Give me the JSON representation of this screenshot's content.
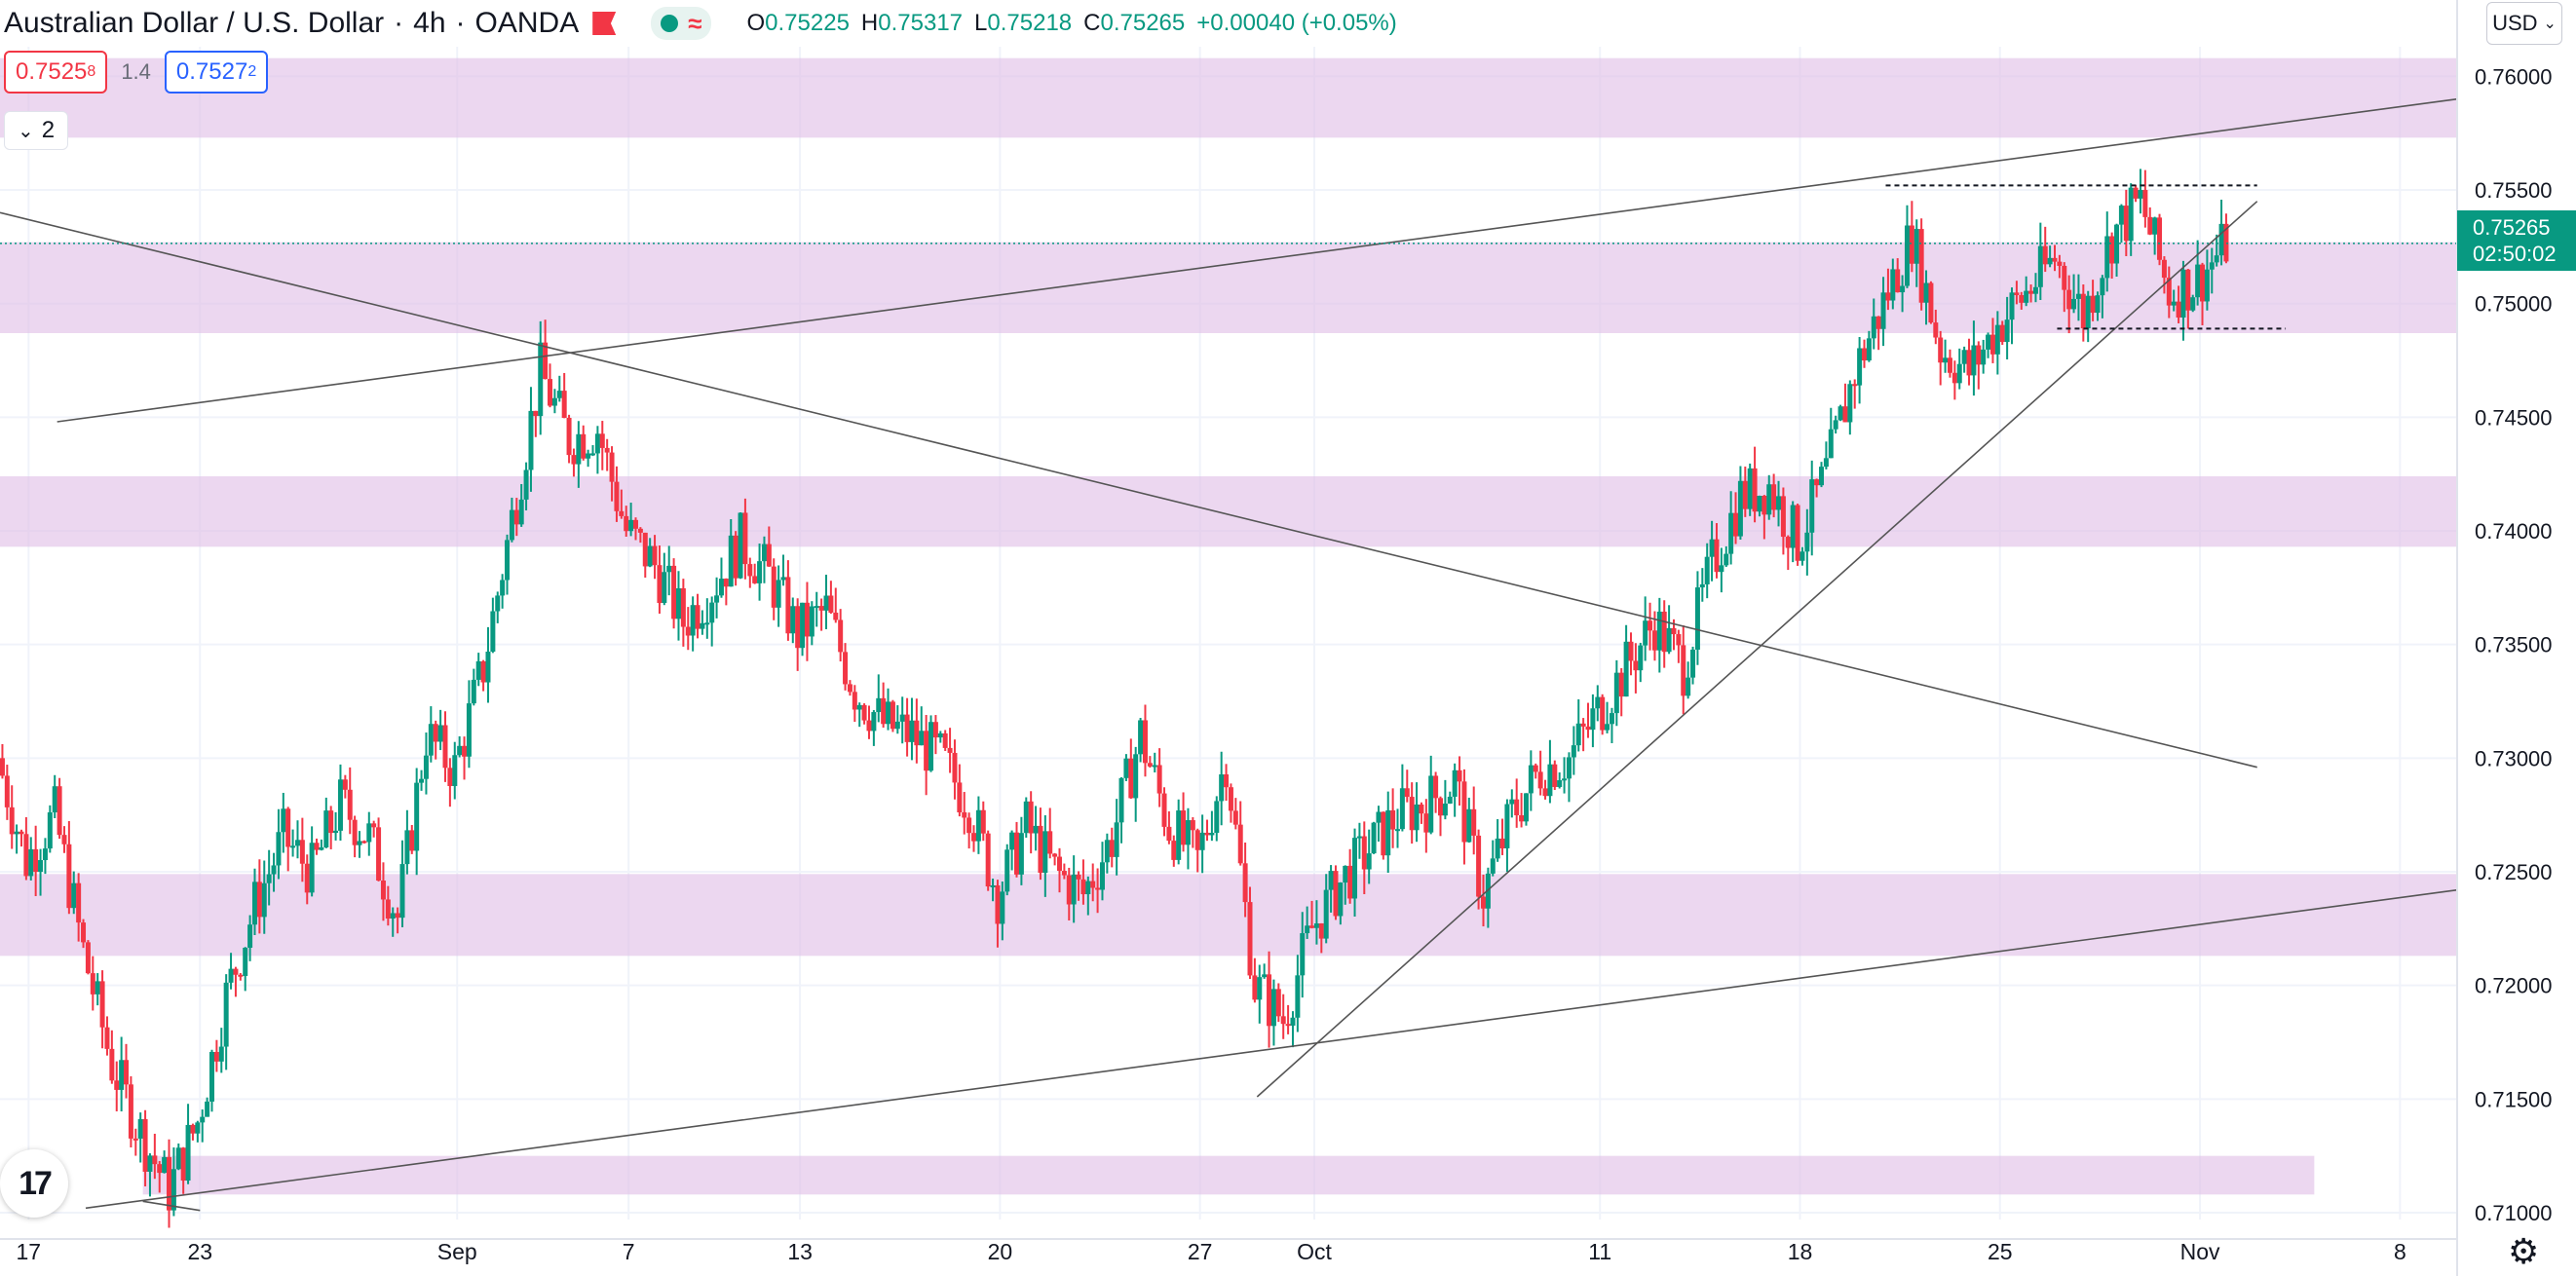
{
  "header": {
    "symbol": "Australian Dollar / U.S. Dollar",
    "timeframe": "4h",
    "broker": "OANDA",
    "sep": "·",
    "wave_glyph": "≈",
    "ohlc": {
      "o_label": "O",
      "o_value": "0.75225",
      "h_label": "H",
      "h_value": "0.75317",
      "l_label": "L",
      "l_value": "0.75218",
      "c_label": "C",
      "c_value": "0.75265",
      "change": "+0.00040 (+0.05%)"
    }
  },
  "trade": {
    "sell_main": "0.7525",
    "sell_sup": "8",
    "spread": "1.4",
    "buy_main": "0.7527",
    "buy_sup": "2"
  },
  "indicators_toggle": {
    "count": "2",
    "chevron": "⌄"
  },
  "currency_select": {
    "value": "USD",
    "chevron": "⌄"
  },
  "last_price": {
    "price": "0.75265",
    "countdown": "02:50:02"
  },
  "logo_text": "17",
  "colors": {
    "up": "#089981",
    "down": "#f23645",
    "zone": "#e1bee7",
    "line": "#555555",
    "grid": "#f0f3fa"
  },
  "chart_data": {
    "type": "candlestick",
    "title": "",
    "ylim": [
      0.7097,
      0.7613
    ],
    "y_ticks": [
      0.76,
      0.755,
      0.75,
      0.745,
      0.74,
      0.735,
      0.73,
      0.725,
      0.72,
      0.715,
      0.71
    ],
    "y_tick_labels": [
      "0.76000",
      "0.75500",
      "0.75000",
      "0.74500",
      "0.74000",
      "0.73500",
      "0.73000",
      "0.72500",
      "0.72000",
      "0.71500",
      "0.71000"
    ],
    "x_range": [
      "Aug 16",
      "Nov 10"
    ],
    "x_ticks": [
      {
        "date": "Aug 17",
        "label": "17"
      },
      {
        "date": "Aug 23",
        "label": "23"
      },
      {
        "date": "Sep 1",
        "label": "Sep"
      },
      {
        "date": "Sep 7",
        "label": "7"
      },
      {
        "date": "Sep 13",
        "label": "13"
      },
      {
        "date": "Sep 20",
        "label": "20"
      },
      {
        "date": "Sep 27",
        "label": "27"
      },
      {
        "date": "Oct 1",
        "label": "Oct"
      },
      {
        "date": "Oct 11",
        "label": "11"
      },
      {
        "date": "Oct 18",
        "label": "18"
      },
      {
        "date": "Oct 25",
        "label": "25"
      },
      {
        "date": "Nov 1",
        "label": "Nov"
      },
      {
        "date": "Nov 8",
        "label": "8"
      }
    ],
    "close_path": [
      [
        "Aug 16",
        0.73
      ],
      [
        "Aug 17",
        0.7255
      ],
      [
        "Aug 18",
        0.7275
      ],
      [
        "Aug 19",
        0.7215
      ],
      [
        "Aug 20",
        0.7165
      ],
      [
        "Aug 21",
        0.7135
      ],
      [
        "Aug 22",
        0.711
      ],
      [
        "Aug 23",
        0.714
      ],
      [
        "Aug 24",
        0.7195
      ],
      [
        "Aug 25",
        0.7235
      ],
      [
        "Aug 26",
        0.7265
      ],
      [
        "Aug 27",
        0.725
      ],
      [
        "Aug 28",
        0.728
      ],
      [
        "Aug 29",
        0.7265
      ],
      [
        "Aug 30",
        0.723
      ],
      [
        "Aug 31",
        0.731
      ],
      [
        "Sep 1",
        0.7295
      ],
      [
        "Sep 2",
        0.734
      ],
      [
        "Sep 3",
        0.7405
      ],
      [
        "Sep 4",
        0.747
      ],
      [
        "Sep 5",
        0.744
      ],
      [
        "Sep 6",
        0.7445
      ],
      [
        "Sep 7",
        0.74
      ],
      [
        "Sep 8",
        0.7385
      ],
      [
        "Sep 9",
        0.736
      ],
      [
        "Sep 10",
        0.7375
      ],
      [
        "Sep 11",
        0.7395
      ],
      [
        "Sep 12",
        0.738
      ],
      [
        "Sep 13",
        0.7355
      ],
      [
        "Sep 14",
        0.7365
      ],
      [
        "Sep 15",
        0.733
      ],
      [
        "Sep 16",
        0.7315
      ],
      [
        "Sep 17",
        0.731
      ],
      [
        "Sep 18",
        0.73
      ],
      [
        "Sep 19",
        0.728
      ],
      [
        "Sep 20",
        0.724
      ],
      [
        "Sep 21",
        0.727
      ],
      [
        "Sep 22",
        0.725
      ],
      [
        "Sep 23",
        0.724
      ],
      [
        "Sep 24",
        0.7265
      ],
      [
        "Sep 25",
        0.731
      ],
      [
        "Sep 26",
        0.727
      ],
      [
        "Sep 27",
        0.7255
      ],
      [
        "Sep 28",
        0.73
      ],
      [
        "Sep 29",
        0.72
      ],
      [
        "Sep 30",
        0.7185
      ],
      [
        "Oct 1",
        0.7225
      ],
      [
        "Oct 2",
        0.7245
      ],
      [
        "Oct 3",
        0.726
      ],
      [
        "Oct 4",
        0.7275
      ],
      [
        "Oct 5",
        0.728
      ],
      [
        "Oct 6",
        0.729
      ],
      [
        "Oct 7",
        0.724
      ],
      [
        "Oct 8",
        0.7275
      ],
      [
        "Oct 9",
        0.7295
      ],
      [
        "Oct 10",
        0.73
      ],
      [
        "Oct 11",
        0.732
      ],
      [
        "Oct 12",
        0.734
      ],
      [
        "Oct 13",
        0.736
      ],
      [
        "Oct 14",
        0.734
      ],
      [
        "Oct 15",
        0.7385
      ],
      [
        "Oct 16",
        0.7415
      ],
      [
        "Oct 17",
        0.742
      ],
      [
        "Oct 18",
        0.7395
      ],
      [
        "Oct 19",
        0.7425
      ],
      [
        "Oct 20",
        0.747
      ],
      [
        "Oct 21",
        0.75
      ],
      [
        "Oct 22",
        0.753
      ],
      [
        "Oct 23",
        0.748
      ],
      [
        "Oct 24",
        0.747
      ],
      [
        "Oct 25",
        0.749
      ],
      [
        "Oct 26",
        0.7505
      ],
      [
        "Oct 27",
        0.752
      ],
      [
        "Oct 28",
        0.7495
      ],
      [
        "Oct 29",
        0.753
      ],
      [
        "Oct 30",
        0.7545
      ],
      [
        "Oct 31",
        0.7505
      ],
      [
        "Nov 1",
        0.751
      ],
      [
        "Nov 2",
        0.75265
      ]
    ],
    "zones": [
      {
        "from": "Aug 16",
        "to": "Nov 10",
        "y1": 0.7573,
        "y2": 0.7608
      },
      {
        "from": "Aug 16",
        "to": "Nov 10",
        "y1": 0.7487,
        "y2": 0.7527
      },
      {
        "from": "Aug 16",
        "to": "Nov 10",
        "y1": 0.7393,
        "y2": 0.7424
      },
      {
        "from": "Aug 16",
        "to": "Nov 10",
        "y1": 0.7213,
        "y2": 0.7249
      },
      {
        "from": "Aug 21",
        "to": "Nov 5",
        "y1": 0.7108,
        "y2": 0.7125
      }
    ],
    "trendlines": [
      {
        "from": [
          "Aug 18",
          0.7448
        ],
        "to": [
          "Nov 10",
          0.759
        ]
      },
      {
        "from": [
          "Aug 16",
          0.754
        ],
        "to": [
          "Nov 3",
          0.7296
        ]
      },
      {
        "from": [
          "Aug 19",
          0.7102
        ],
        "to": [
          "Nov 10",
          0.7242
        ]
      },
      {
        "from": [
          "Sep 29",
          0.7151
        ],
        "to": [
          "Nov 3",
          0.7545
        ]
      },
      {
        "from": [
          "Aug 21",
          0.7105
        ],
        "to": [
          "Aug 23",
          0.7101
        ]
      }
    ],
    "dashed_levels": [
      {
        "from": "Oct 21",
        "to": "Nov 3",
        "y": 0.7552
      },
      {
        "from": "Oct 27",
        "to": "Nov 4",
        "y": 0.7489
      }
    ],
    "last_price": 0.75265
  }
}
